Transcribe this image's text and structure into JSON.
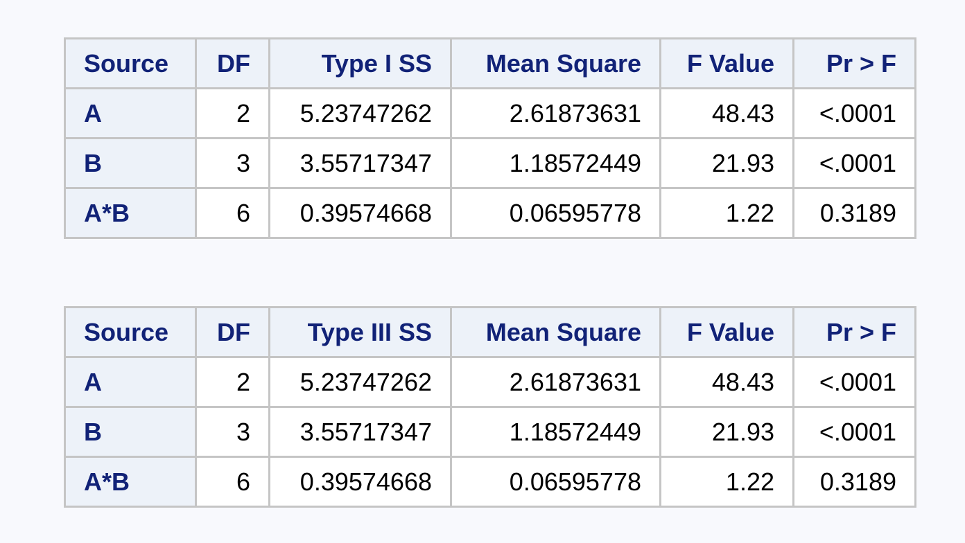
{
  "tables": [
    {
      "headers": [
        "Source",
        "DF",
        "Type I SS",
        "Mean Square",
        "F Value",
        "Pr > F"
      ],
      "rows": [
        [
          "A",
          "2",
          "5.23747262",
          "2.61873631",
          "48.43",
          "<.0001"
        ],
        [
          "B",
          "3",
          "3.55717347",
          "1.18572449",
          "21.93",
          "<.0001"
        ],
        [
          "A*B",
          "6",
          "0.39574668",
          "0.06595778",
          "1.22",
          "0.3189"
        ]
      ]
    },
    {
      "headers": [
        "Source",
        "DF",
        "Type III SS",
        "Mean Square",
        "F Value",
        "Pr > F"
      ],
      "rows": [
        [
          "A",
          "2",
          "5.23747262",
          "2.61873631",
          "48.43",
          "<.0001"
        ],
        [
          "B",
          "3",
          "3.55717347",
          "1.18572449",
          "21.93",
          "<.0001"
        ],
        [
          "A*B",
          "6",
          "0.39574668",
          "0.06595778",
          "1.22",
          "0.3189"
        ]
      ]
    }
  ],
  "colors": {
    "page_background": "#f8f9fd",
    "header_background": "#edf2f9",
    "header_text": "#112277",
    "grid_line": "#c5c5c5"
  }
}
